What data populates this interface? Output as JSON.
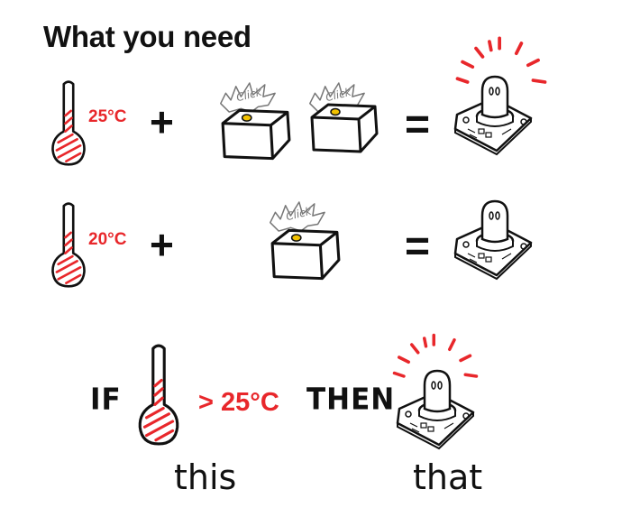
{
  "title": "What you need",
  "row1": {
    "temperature": "25°C",
    "plus": "+",
    "equals": "="
  },
  "row2": {
    "temperature": "20°C",
    "plus": "+",
    "equals": "="
  },
  "click_label": "Click",
  "rule": {
    "if_word": "IF",
    "condition": "> 25°C",
    "then_word": "THEN",
    "this_label": "this",
    "that_label": "that"
  },
  "colors": {
    "accent_red": "#e8272b",
    "ink": "#111111",
    "button_yellow": "#f2c200"
  },
  "icons": [
    "thermometer-icon",
    "push-button-icon",
    "click-burst-icon",
    "led-module-icon",
    "glow-rays-icon"
  ]
}
